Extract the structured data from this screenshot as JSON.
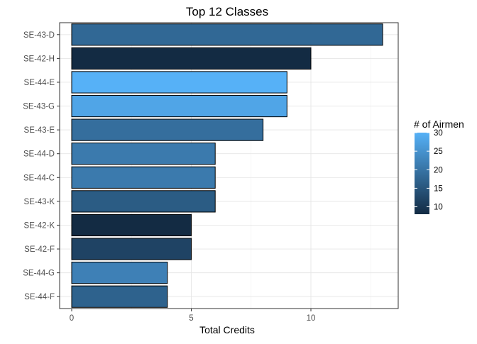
{
  "chart_data": {
    "type": "bar",
    "orientation": "horizontal",
    "title": "Top 12 Classes",
    "xlabel": "Total Credits",
    "ylabel": "",
    "xlim": [
      0,
      13.6
    ],
    "x_ticks": [
      0,
      5,
      10
    ],
    "grid": true,
    "legend": {
      "title": "# of Airmen",
      "position": "right",
      "ticks": [
        10,
        15,
        20,
        25,
        30
      ],
      "range": [
        8,
        30
      ],
      "color_low": "#132b43",
      "color_high": "#56b1f7"
    },
    "categories": [
      "SE-43-D",
      "SE-42-H",
      "SE-44-E",
      "SE-43-G",
      "SE-43-E",
      "SE-44-D",
      "SE-44-C",
      "SE-43-K",
      "SE-42-K",
      "SE-42-F",
      "SE-44-G",
      "SE-44-F"
    ],
    "values": [
      13,
      10,
      9,
      9,
      8,
      6,
      6,
      6,
      5,
      5,
      4,
      4
    ],
    "fill_values": [
      18,
      8,
      30,
      28,
      19,
      21,
      21,
      16,
      8,
      12,
      22,
      17
    ]
  }
}
